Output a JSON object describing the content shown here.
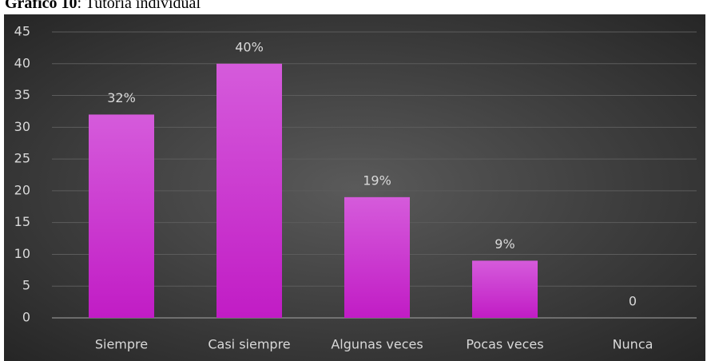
{
  "chart_data": {
    "type": "bar",
    "title": "Gráfico 10",
    "subtitle": ": Tutoría individual",
    "categories": [
      "Siempre",
      "Casi siempre",
      "Algunas veces",
      "Pocas veces",
      "Nunca"
    ],
    "values": [
      32,
      40,
      19,
      9,
      0
    ],
    "value_labels": [
      "32%",
      "40%",
      "19%",
      "9%",
      "0"
    ],
    "color": "#cc3fd0",
    "ylim": [
      0,
      45
    ],
    "yticks": [
      0,
      5,
      10,
      15,
      20,
      25,
      30,
      35,
      40,
      45
    ],
    "grid": true
  }
}
